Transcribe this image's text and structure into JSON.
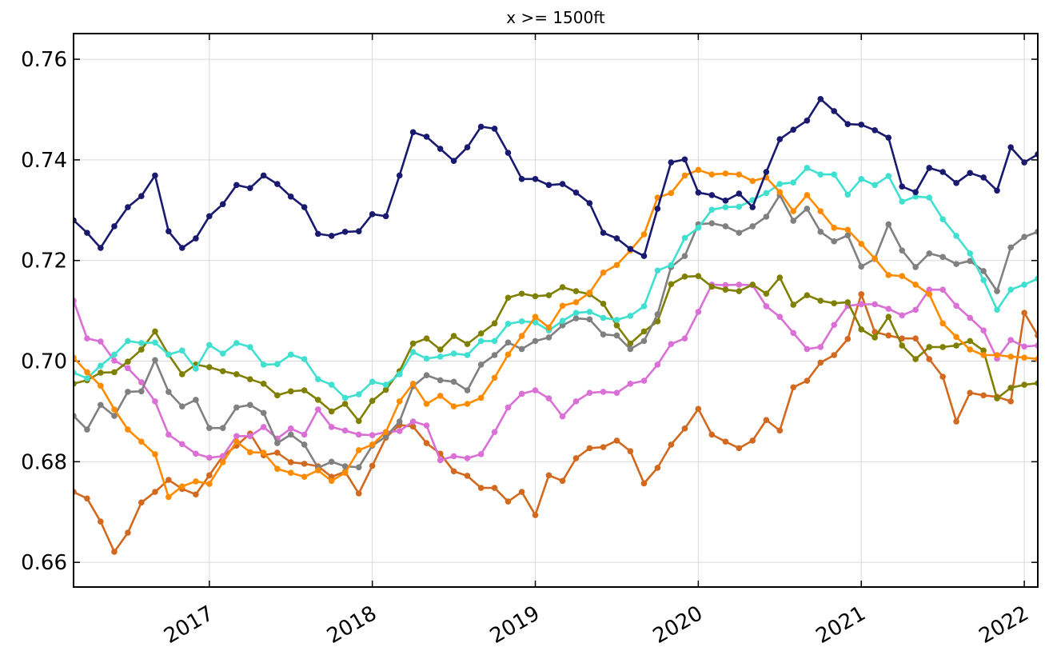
{
  "chart_data": {
    "type": "line",
    "title": "x >= 1500ft",
    "x": [
      2016.167,
      2016.25,
      2016.333,
      2016.417,
      2016.5,
      2016.583,
      2016.667,
      2016.75,
      2016.833,
      2016.917,
      2017,
      2017.083,
      2017.167,
      2017.25,
      2017.333,
      2017.417,
      2017.5,
      2017.583,
      2017.667,
      2017.75,
      2017.833,
      2017.917,
      2018,
      2018.083,
      2018.167,
      2018.25,
      2018.333,
      2018.417,
      2018.5,
      2018.583,
      2018.667,
      2018.75,
      2018.833,
      2018.917,
      2019,
      2019.083,
      2019.167,
      2019.25,
      2019.333,
      2019.417,
      2019.5,
      2019.583,
      2019.667,
      2019.75,
      2019.833,
      2019.917,
      2020,
      2020.083,
      2020.167,
      2020.25,
      2020.333,
      2020.417,
      2020.5,
      2020.583,
      2020.667,
      2020.75,
      2020.833,
      2020.917,
      2021,
      2021.083,
      2021.167,
      2021.25,
      2021.333,
      2021.417,
      2021.5,
      2021.583,
      2021.667,
      2021.75,
      2021.833,
      2021.917,
      2022,
      2022.083
    ],
    "series": [
      {
        "color": "#d2691e",
        "values": [
          0.674,
          0.6727,
          0.6681,
          0.6621,
          0.6659,
          0.6719,
          0.674,
          0.6764,
          0.6746,
          0.6735,
          0.6773,
          0.6811,
          0.6832,
          0.6856,
          0.6813,
          0.6818,
          0.6799,
          0.6796,
          0.6791,
          0.677,
          0.678,
          0.6737,
          0.6792,
          0.6848,
          0.6873,
          0.687,
          0.6837,
          0.6816,
          0.6781,
          0.6772,
          0.6748,
          0.6748,
          0.6721,
          0.674,
          0.6694,
          0.6773,
          0.6762,
          0.6807,
          0.6827,
          0.6829,
          0.6842,
          0.6821,
          0.6757,
          0.6788,
          0.6834,
          0.6866,
          0.6905,
          0.6854,
          0.684,
          0.6827,
          0.6842,
          0.6883,
          0.6862,
          0.6948,
          0.6961,
          0.6997,
          0.7012,
          0.7044,
          0.7133,
          0.7058,
          0.7051,
          0.7045,
          0.7045,
          0.7004,
          0.6969,
          0.688,
          0.6937,
          0.6932,
          0.6929,
          0.692,
          0.7096,
          0.7051
        ]
      },
      {
        "color": "#da70d6",
        "values": [
          0.712,
          0.7045,
          0.7039,
          0.7001,
          0.6986,
          0.6958,
          0.692,
          0.6854,
          0.6835,
          0.6816,
          0.6808,
          0.6811,
          0.6851,
          0.6851,
          0.6869,
          0.6846,
          0.6866,
          0.6854,
          0.6904,
          0.6869,
          0.6862,
          0.6854,
          0.6853,
          0.6859,
          0.6861,
          0.688,
          0.6872,
          0.6803,
          0.6811,
          0.6807,
          0.6815,
          0.6859,
          0.6908,
          0.6935,
          0.6942,
          0.6926,
          0.689,
          0.692,
          0.6937,
          0.6939,
          0.6937,
          0.6955,
          0.6961,
          0.6993,
          0.7034,
          0.7045,
          0.7098,
          0.7152,
          0.7151,
          0.7152,
          0.7151,
          0.7109,
          0.7088,
          0.7056,
          0.7024,
          0.7028,
          0.7072,
          0.711,
          0.7113,
          0.7113,
          0.7104,
          0.7091,
          0.7102,
          0.7142,
          0.7142,
          0.711,
          0.7086,
          0.7061,
          0.7005,
          0.7042,
          0.7029,
          0.7031
        ]
      },
      {
        "color": "#808000",
        "values": [
          0.6955,
          0.6962,
          0.6977,
          0.6978,
          0.6999,
          0.7023,
          0.7059,
          0.7013,
          0.6974,
          0.6993,
          0.6988,
          0.698,
          0.6974,
          0.6964,
          0.6955,
          0.6932,
          0.694,
          0.6942,
          0.6923,
          0.69,
          0.6915,
          0.6881,
          0.6921,
          0.6943,
          0.698,
          0.7035,
          0.7045,
          0.7023,
          0.705,
          0.7034,
          0.7055,
          0.7075,
          0.7126,
          0.7134,
          0.7129,
          0.7131,
          0.7147,
          0.7139,
          0.7133,
          0.7114,
          0.7071,
          0.7035,
          0.7059,
          0.7079,
          0.7153,
          0.7168,
          0.7169,
          0.7148,
          0.7142,
          0.7139,
          0.7152,
          0.7134,
          0.7166,
          0.7112,
          0.7131,
          0.712,
          0.7115,
          0.7117,
          0.7063,
          0.7047,
          0.7088,
          0.7031,
          0.7004,
          0.7028,
          0.7028,
          0.7031,
          0.704,
          0.7021,
          0.6926,
          0.6947,
          0.6953,
          0.6956
        ]
      },
      {
        "color": "#808080",
        "values": [
          0.6891,
          0.6864,
          0.6913,
          0.6891,
          0.6939,
          0.694,
          0.7002,
          0.6939,
          0.691,
          0.6923,
          0.6867,
          0.6867,
          0.6908,
          0.6913,
          0.6897,
          0.6837,
          0.6854,
          0.6834,
          0.6788,
          0.68,
          0.6791,
          0.6789,
          0.6832,
          0.685,
          0.688,
          0.695,
          0.6972,
          0.6962,
          0.6959,
          0.6942,
          0.6993,
          0.7012,
          0.7037,
          0.7024,
          0.704,
          0.7047,
          0.7071,
          0.7085,
          0.7083,
          0.7053,
          0.7051,
          0.7024,
          0.704,
          0.7093,
          0.7187,
          0.7209,
          0.7272,
          0.7274,
          0.7268,
          0.7255,
          0.7268,
          0.7287,
          0.733,
          0.7279,
          0.7303,
          0.7257,
          0.7238,
          0.725,
          0.7188,
          0.7203,
          0.7272,
          0.722,
          0.7187,
          0.7214,
          0.7207,
          0.7193,
          0.7199,
          0.7179,
          0.7139,
          0.7226,
          0.7247,
          0.7257
        ]
      },
      {
        "color": "#40e0d0",
        "values": [
          0.6977,
          0.6966,
          0.6991,
          0.7013,
          0.704,
          0.7036,
          0.7037,
          0.7013,
          0.7021,
          0.6985,
          0.7032,
          0.7015,
          0.7036,
          0.7028,
          0.6993,
          0.6994,
          0.7013,
          0.7004,
          0.6964,
          0.6953,
          0.6927,
          0.6934,
          0.6959,
          0.6953,
          0.6974,
          0.7018,
          0.7005,
          0.7009,
          0.7015,
          0.7012,
          0.704,
          0.704,
          0.7074,
          0.7079,
          0.7077,
          0.7061,
          0.708,
          0.7096,
          0.7098,
          0.7086,
          0.7082,
          0.709,
          0.7109,
          0.718,
          0.7191,
          0.7245,
          0.7265,
          0.7301,
          0.7306,
          0.7307,
          0.732,
          0.7334,
          0.7352,
          0.7355,
          0.7384,
          0.7371,
          0.7371,
          0.7331,
          0.7362,
          0.735,
          0.7368,
          0.7317,
          0.7327,
          0.7325,
          0.7282,
          0.7249,
          0.7214,
          0.7161,
          0.7102,
          0.7142,
          0.7152,
          0.7164
        ]
      },
      {
        "color": "#ff8c00",
        "values": [
          0.7007,
          0.6978,
          0.6951,
          0.6904,
          0.6864,
          0.684,
          0.6815,
          0.673,
          0.6751,
          0.6761,
          0.6756,
          0.6799,
          0.684,
          0.6819,
          0.6818,
          0.6786,
          0.6778,
          0.677,
          0.6783,
          0.6762,
          0.6778,
          0.6823,
          0.6834,
          0.6859,
          0.692,
          0.6955,
          0.6915,
          0.6931,
          0.691,
          0.6915,
          0.6927,
          0.6967,
          0.7013,
          0.705,
          0.7088,
          0.7067,
          0.711,
          0.7117,
          0.7136,
          0.7176,
          0.7191,
          0.722,
          0.7252,
          0.7325,
          0.7334,
          0.7369,
          0.738,
          0.7371,
          0.7373,
          0.7371,
          0.7358,
          0.7365,
          0.7336,
          0.7298,
          0.733,
          0.7298,
          0.7265,
          0.7261,
          0.7233,
          0.7204,
          0.7171,
          0.7169,
          0.7152,
          0.7133,
          0.7075,
          0.7048,
          0.7023,
          0.7012,
          0.7012,
          0.7009,
          0.7007,
          0.7004
        ]
      },
      {
        "color": "#191970",
        "values": [
          0.728,
          0.7255,
          0.7225,
          0.7268,
          0.7306,
          0.7328,
          0.7369,
          0.7258,
          0.7225,
          0.7244,
          0.7288,
          0.7312,
          0.735,
          0.7344,
          0.7369,
          0.7352,
          0.7327,
          0.7306,
          0.7253,
          0.7249,
          0.7257,
          0.7258,
          0.7292,
          0.7288,
          0.7369,
          0.7455,
          0.7446,
          0.7422,
          0.7398,
          0.7425,
          0.7466,
          0.7462,
          0.7414,
          0.7362,
          0.7362,
          0.735,
          0.7352,
          0.7335,
          0.7314,
          0.7255,
          0.7244,
          0.7223,
          0.7209,
          0.7303,
          0.7395,
          0.7401,
          0.7335,
          0.733,
          0.7319,
          0.7333,
          0.7306,
          0.7376,
          0.7441,
          0.746,
          0.7478,
          0.7521,
          0.7497,
          0.7471,
          0.747,
          0.7459,
          0.7444,
          0.7347,
          0.7336,
          0.7384,
          0.7376,
          0.7354,
          0.7374,
          0.7365,
          0.7339,
          0.7425,
          0.7395,
          0.7411
        ]
      }
    ],
    "xlim": [
      2016.167,
      2022.083
    ],
    "xticks": [
      2017,
      2018,
      2019,
      2020,
      2021,
      2022
    ],
    "ylim": [
      0.6551,
      0.7651
    ],
    "yticks": [
      0.66,
      0.68,
      {
        "value": 0.7,
        "label": "0.70"
      },
      0.72,
      0.74,
      0.76
    ],
    "grid": true
  }
}
